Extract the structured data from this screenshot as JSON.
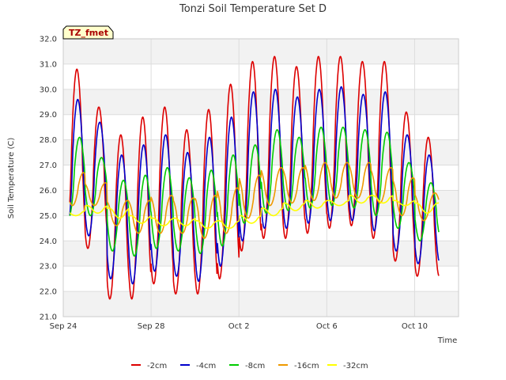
{
  "chart_data": {
    "type": "line",
    "title": "Tonzi Soil Temperature Set D",
    "xlabel": "Time",
    "ylabel": "Soil Temperature (C)",
    "tag": "TZ_fmet",
    "ylim": [
      21.0,
      32.0
    ],
    "yticks": [
      "21.0",
      "22.0",
      "23.0",
      "24.0",
      "25.0",
      "26.0",
      "27.0",
      "28.0",
      "29.0",
      "30.0",
      "31.0",
      "32.0"
    ],
    "xlim_days": [
      0,
      18
    ],
    "xticks": [
      {
        "day": 0,
        "label": "Sep 24"
      },
      {
        "day": 4,
        "label": "Sep 28"
      },
      {
        "day": 8,
        "label": "Oct 2"
      },
      {
        "day": 12,
        "label": "Oct 6"
      },
      {
        "day": 16,
        "label": "Oct 10"
      }
    ],
    "grid": true,
    "legend_position": "bottom",
    "series": [
      {
        "name": "-2cm",
        "color": "#dd0000",
        "phase": 0.0,
        "peaks": [
          30.8,
          29.3,
          28.2,
          28.9,
          29.3,
          28.4,
          29.2,
          30.2,
          31.1,
          31.3,
          30.9,
          31.3,
          31.3,
          31.1,
          31.1,
          29.1,
          28.1
        ],
        "troughs": [
          23.8,
          23.7,
          21.7,
          21.7,
          22.3,
          21.9,
          21.9,
          22.5,
          23.6,
          24.1,
          24.1,
          24.3,
          24.5,
          24.6,
          24.1,
          23.2,
          22.6
        ]
      },
      {
        "name": "-4cm",
        "color": "#0000cc",
        "phase": 0.04,
        "peaks": [
          29.6,
          28.7,
          27.4,
          27.8,
          28.2,
          27.5,
          28.1,
          28.9,
          29.9,
          30.0,
          29.7,
          30.0,
          30.1,
          29.8,
          29.9,
          28.2,
          27.4
        ],
        "troughs": [
          24.2,
          24.2,
          22.5,
          22.3,
          22.8,
          22.6,
          22.4,
          23.0,
          24.0,
          24.5,
          24.5,
          24.7,
          24.8,
          24.8,
          24.4,
          23.6,
          23.1
        ]
      },
      {
        "name": "-8cm",
        "color": "#00cc00",
        "phase": 0.12,
        "peaks": [
          28.1,
          27.3,
          26.4,
          26.6,
          26.9,
          26.5,
          26.8,
          27.4,
          27.8,
          28.4,
          28.1,
          28.5,
          28.5,
          28.4,
          28.3,
          27.1,
          26.3
        ],
        "troughs": [
          24.9,
          25.0,
          23.6,
          23.4,
          23.7,
          23.6,
          23.5,
          23.8,
          24.7,
          25.1,
          25.2,
          25.3,
          25.4,
          25.3,
          25.0,
          24.5,
          24.0
        ]
      },
      {
        "name": "-16cm",
        "color": "#ee9900",
        "phase": 0.3,
        "peaks": [
          26.7,
          26.3,
          25.6,
          25.6,
          25.8,
          25.7,
          25.8,
          26.1,
          26.6,
          26.9,
          26.9,
          27.1,
          27.1,
          27.1,
          26.9,
          26.5,
          25.9
        ],
        "troughs": [
          25.4,
          25.4,
          24.6,
          24.3,
          24.3,
          24.3,
          24.1,
          24.3,
          24.9,
          25.4,
          25.5,
          25.6,
          25.7,
          25.7,
          25.5,
          25.0,
          24.8
        ]
      },
      {
        "name": "-32cm",
        "color": "#ffff00",
        "phase": 0.45,
        "peaks": [
          25.2,
          25.4,
          25.3,
          25.0,
          24.9,
          24.9,
          24.8,
          24.8,
          25.0,
          25.3,
          25.5,
          25.6,
          25.6,
          25.8,
          25.8,
          25.6,
          25.5
        ],
        "troughs": [
          25.0,
          25.1,
          24.9,
          24.7,
          24.6,
          24.6,
          24.5,
          24.5,
          24.7,
          25.0,
          25.2,
          25.3,
          25.4,
          25.5,
          25.5,
          25.4,
          25.1
        ]
      }
    ]
  }
}
